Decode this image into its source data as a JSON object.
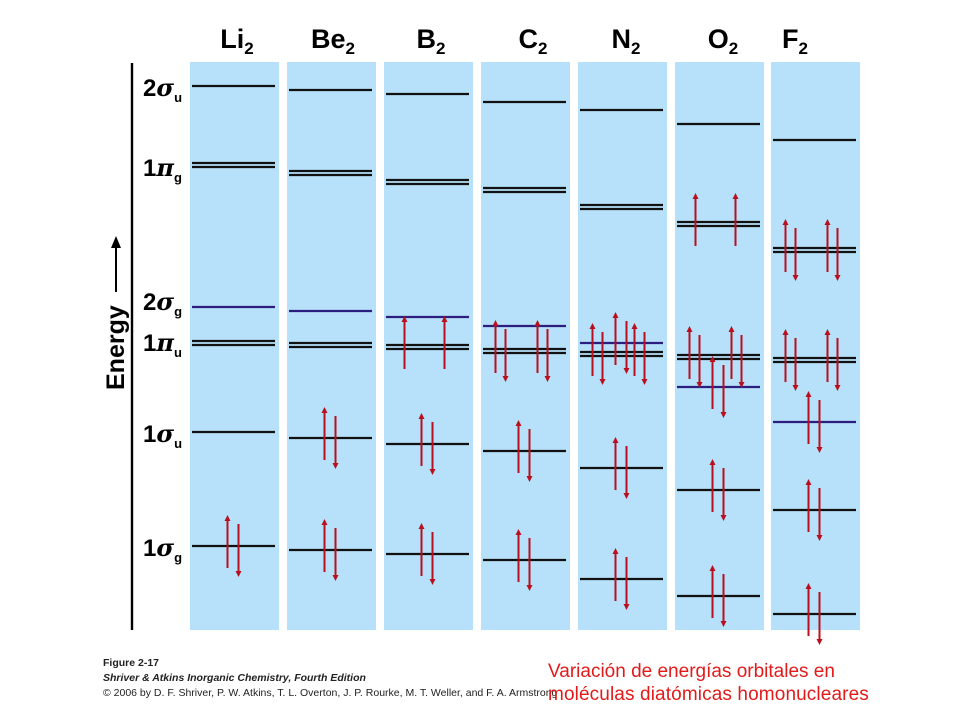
{
  "diagram": {
    "molecules": [
      {
        "base": "Li",
        "sub": "2"
      },
      {
        "base": "Be",
        "sub": "2"
      },
      {
        "base": "B",
        "sub": "2"
      },
      {
        "base": "C",
        "sub": "2"
      },
      {
        "base": "N",
        "sub": "2"
      },
      {
        "base": "O",
        "sub": "2"
      },
      {
        "base": "F",
        "sub": "2"
      }
    ],
    "orbitals": [
      {
        "num": "2",
        "greek": "σ",
        "sub": "u"
      },
      {
        "num": "1",
        "greek": "π",
        "sub": "g"
      },
      {
        "num": "2",
        "greek": "σ",
        "sub": "g"
      },
      {
        "num": "1",
        "greek": "π",
        "sub": "u"
      },
      {
        "num": "1",
        "greek": "σ",
        "sub": "u"
      },
      {
        "num": "1",
        "greek": "σ",
        "sub": "g"
      }
    ],
    "energy_axis_label": "Energy",
    "colors": {
      "panel": "#b7e1fa",
      "level": "#111111",
      "sigma2g_level": "#2b1e7e",
      "electron": "#b8101e"
    }
  },
  "figure_credit": {
    "label": "Figure 2-17",
    "book": "Shriver & Atkins Inorganic Chemistry, Fourth Edition",
    "copyright": "© 2006 by D. F. Shriver, P. W. Atkins, T. L. Overton, J. P. Rourke, M. T. Weller, and F. A. Armstrong"
  },
  "caption": {
    "line1": "Variación de energías orbitales en",
    "line2": "moléculas diatómicas homonucleares"
  }
}
